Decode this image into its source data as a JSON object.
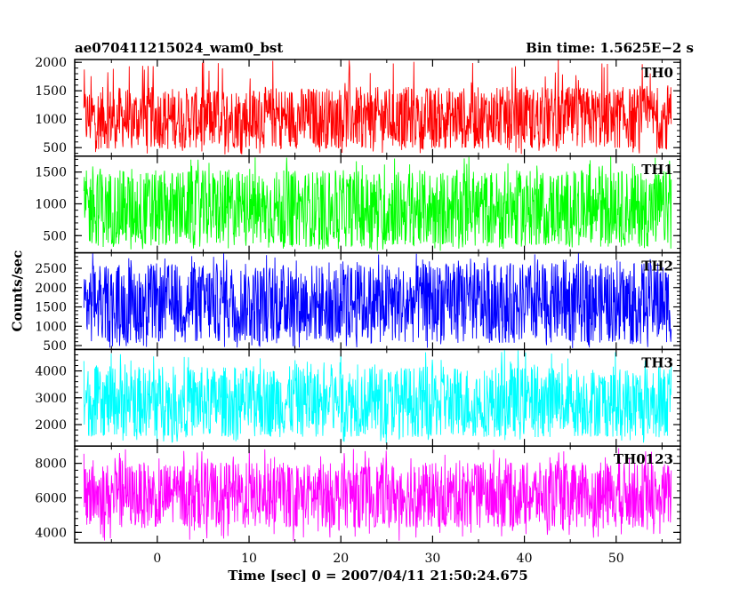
{
  "header": {
    "title_left": "ae070411215024_wam0_bst",
    "title_right": "Bin time: 1.5625E−2 s"
  },
  "axes": {
    "xlabel": "Time [sec] 0 = 2007/04/11 21:50:24.675",
    "ylabel": "Counts/sec"
  },
  "colors": {
    "TH0": "#ff0000",
    "TH1": "#00ff00",
    "TH2": "#0000ff",
    "TH3": "#00ffff",
    "TH0123": "#ff00ff"
  },
  "chart_data": {
    "type": "line",
    "title": "ae070411215024_wam0_bst",
    "subtitle": "Bin time: 1.5625E−2 s",
    "xlabel": "Time [sec] 0 = 2007/04/11 21:50:24.675",
    "ylabel": "Counts/sec",
    "xlim": [
      -9,
      57
    ],
    "x_range_data": [
      -8,
      56
    ],
    "x_ticks": [
      0,
      10,
      20,
      30,
      40,
      50
    ],
    "grid": false,
    "panels": [
      {
        "name": "TH0",
        "color": "#ff0000",
        "ylim": [
          350,
          2050
        ],
        "yticks": [
          500,
          1000,
          1500,
          2000
        ],
        "typical_low": 550,
        "typical_high": 1500,
        "min": 380,
        "max": 2050
      },
      {
        "name": "TH1",
        "color": "#00ff00",
        "ylim": [
          230,
          1750
        ],
        "yticks": [
          500,
          1000,
          1500
        ],
        "typical_low": 400,
        "typical_high": 1450,
        "min": 260,
        "max": 1750
      },
      {
        "name": "TH2",
        "color": "#0000ff",
        "ylim": [
          400,
          2900
        ],
        "yticks": [
          500,
          1000,
          1500,
          2000,
          2500
        ],
        "typical_low": 700,
        "typical_high": 2500,
        "min": 430,
        "max": 2900
      },
      {
        "name": "TH3",
        "color": "#00ffff",
        "ylim": [
          1200,
          4800
        ],
        "yticks": [
          2000,
          3000,
          4000
        ],
        "typical_low": 1700,
        "typical_high": 4000,
        "min": 1300,
        "max": 4800
      },
      {
        "name": "TH0123",
        "color": "#ff00ff",
        "ylim": [
          3400,
          9000
        ],
        "yticks": [
          4000,
          6000,
          8000
        ],
        "typical_low": 4500,
        "typical_high": 7800,
        "min": 3500,
        "max": 8900
      }
    ]
  }
}
